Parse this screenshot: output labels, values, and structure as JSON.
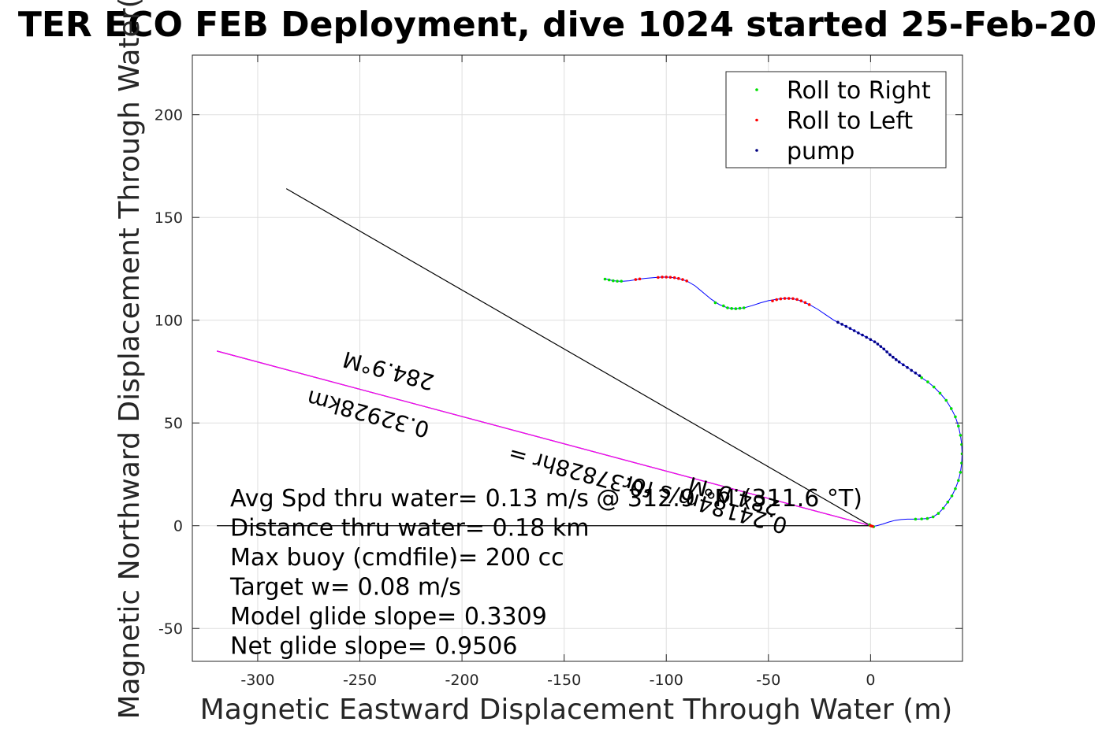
{
  "chart_data": {
    "type": "scatter",
    "title": "TER ECO FEB Deployment, dive 1024 started 25-Feb-20",
    "xlabel": "Magnetic Eastward Displacement Through Water (m)",
    "ylabel": "Magnetic Northward Displacement Through Water(",
    "xlim": [
      -332,
      45
    ],
    "ylim": [
      -66,
      229
    ],
    "xticks": [
      -300,
      -250,
      -200,
      -150,
      -100,
      -50,
      0
    ],
    "yticks": [
      -50,
      0,
      50,
      100,
      150,
      200
    ],
    "grid": true,
    "legend_position": "top-right",
    "series": [
      {
        "name": "Roll to Right",
        "color": "#00e000",
        "points": [
          [
            -130,
            120
          ],
          [
            -128,
            119.6
          ],
          [
            -126,
            119.2
          ],
          [
            -124,
            119
          ],
          [
            -122,
            119
          ],
          [
            -76,
            108.5
          ],
          [
            -72,
            107
          ],
          [
            -70,
            106
          ],
          [
            -68,
            105.7
          ],
          [
            -66,
            105.6
          ],
          [
            -64,
            105.8
          ],
          [
            -62,
            106
          ],
          [
            25,
            72
          ],
          [
            28,
            70
          ],
          [
            31,
            67.5
          ],
          [
            34,
            64.5
          ],
          [
            37,
            61
          ],
          [
            39.5,
            57
          ],
          [
            41.5,
            53
          ],
          [
            43,
            48.5
          ],
          [
            44,
            44
          ],
          [
            44.6,
            39.5
          ],
          [
            44.8,
            35
          ],
          [
            44.6,
            30.5
          ],
          [
            44,
            26
          ],
          [
            43,
            22
          ],
          [
            41.5,
            18
          ],
          [
            39.8,
            14.5
          ],
          [
            37.8,
            11.5
          ],
          [
            35.6,
            8.5
          ],
          [
            33.2,
            6
          ],
          [
            30.6,
            4.3
          ],
          [
            27.8,
            3.5
          ],
          [
            25,
            3.3
          ],
          [
            22,
            3.2
          ],
          [
            -0.5,
            0.5
          ],
          [
            0.5,
            -0.2
          ],
          [
            1.5,
            -0.5
          ]
        ]
      },
      {
        "name": "Roll to Left",
        "color": "#ff0000",
        "points": [
          [
            -115,
            119.8
          ],
          [
            -113,
            120.1
          ],
          [
            -104,
            120.8
          ],
          [
            -102,
            121
          ],
          [
            -100,
            121
          ],
          [
            -98,
            120.9
          ],
          [
            -96,
            120.7
          ],
          [
            -94,
            120.3
          ],
          [
            -92,
            119.8
          ],
          [
            -90,
            119.1
          ],
          [
            -48,
            109.4
          ],
          [
            -46,
            110
          ],
          [
            -44,
            110.4
          ],
          [
            -42,
            110.6
          ],
          [
            -40,
            110.6
          ],
          [
            -38,
            110.5
          ],
          [
            -36,
            110.1
          ],
          [
            -34,
            109.4
          ],
          [
            -32,
            108.6
          ],
          [
            -30,
            107.6
          ],
          [
            0,
            0
          ],
          [
            1,
            -0.3
          ]
        ]
      },
      {
        "name": "pump",
        "color": "#000080",
        "points": [
          [
            -16,
            99
          ],
          [
            -14,
            98
          ],
          [
            -12,
            97
          ],
          [
            -10,
            96
          ],
          [
            -8,
            94.9
          ],
          [
            -6,
            93.8
          ],
          [
            -4,
            92.8
          ],
          [
            -2,
            91.7
          ],
          [
            0,
            90.6
          ],
          [
            2,
            89.5
          ],
          [
            3.5,
            88.4
          ],
          [
            5,
            87.2
          ],
          [
            6.5,
            86
          ],
          [
            8,
            84.6
          ],
          [
            9.5,
            83.2
          ],
          [
            11,
            82
          ],
          [
            12.5,
            80.8
          ],
          [
            14,
            79.7
          ],
          [
            16,
            78.3
          ],
          [
            18,
            77
          ],
          [
            20,
            75.6
          ],
          [
            22,
            74.3
          ],
          [
            24,
            73
          ]
        ]
      }
    ],
    "track": [
      [
        -130,
        120.2
      ],
      [
        -126,
        119.2
      ],
      [
        -122,
        118.9
      ],
      [
        -118,
        119.2
      ],
      [
        -114,
        119.9
      ],
      [
        -110,
        120.4
      ],
      [
        -106,
        120.7
      ],
      [
        -102,
        121
      ],
      [
        -98,
        120.9
      ],
      [
        -94,
        120.3
      ],
      [
        -90,
        119.1
      ],
      [
        -86,
        116.8
      ],
      [
        -82,
        113.5
      ],
      [
        -78,
        110.2
      ],
      [
        -74,
        107.6
      ],
      [
        -70,
        106
      ],
      [
        -66,
        105.6
      ],
      [
        -62,
        106
      ],
      [
        -58,
        107.1
      ],
      [
        -54,
        108.4
      ],
      [
        -50,
        109.5
      ],
      [
        -46,
        110.2
      ],
      [
        -42,
        110.6
      ],
      [
        -38,
        110.5
      ],
      [
        -34,
        109.4
      ],
      [
        -30,
        107.6
      ],
      [
        -26,
        105.4
      ],
      [
        -22,
        102.7
      ],
      [
        -18,
        100
      ],
      [
        -14,
        98
      ],
      [
        -10,
        96
      ],
      [
        -6,
        93.8
      ],
      [
        -2,
        91.7
      ],
      [
        2,
        89.5
      ],
      [
        5,
        87.2
      ],
      [
        8,
        84.6
      ],
      [
        11,
        82
      ],
      [
        14,
        79.7
      ],
      [
        18,
        77
      ],
      [
        22,
        74.3
      ],
      [
        25,
        72
      ],
      [
        28,
        70
      ],
      [
        31,
        67.5
      ],
      [
        34,
        64.5
      ],
      [
        37,
        61
      ],
      [
        39.5,
        57
      ],
      [
        41.5,
        53
      ],
      [
        43,
        48.5
      ],
      [
        44,
        44
      ],
      [
        44.6,
        39.5
      ],
      [
        44.8,
        35
      ],
      [
        44.6,
        30.5
      ],
      [
        44,
        26
      ],
      [
        43,
        22
      ],
      [
        41.5,
        18
      ],
      [
        39.8,
        14.5
      ],
      [
        37.8,
        11.5
      ],
      [
        35.6,
        8.5
      ],
      [
        33.2,
        6
      ],
      [
        30.6,
        4.3
      ],
      [
        27.8,
        3.5
      ],
      [
        25,
        3.3
      ],
      [
        22,
        3.2
      ],
      [
        18,
        3.2
      ],
      [
        15,
        3
      ],
      [
        12,
        2.6
      ],
      [
        9,
        1.8
      ],
      [
        6,
        0.8
      ],
      [
        3,
        0
      ],
      [
        1,
        -0.4
      ],
      [
        0,
        0
      ]
    ],
    "reference_lines": [
      {
        "color": "#000000",
        "from": [
          0,
          0
        ],
        "to": [
          -286,
          164
        ]
      },
      {
        "color": "#000000",
        "from": [
          0,
          0
        ],
        "to": [
          -320,
          85
        ]
      },
      {
        "color": "#ff00ff",
        "from": [
          0,
          0
        ],
        "to": [
          -320,
          85
        ]
      },
      {
        "color": "#000000",
        "from": [
          0,
          0
        ],
        "to": [
          -320,
          0
        ]
      }
    ],
    "heading_labels": [
      {
        "text": "284.9°M",
        "x": -235,
        "y": 79,
        "rotation": 195.2
      },
      {
        "text": "0.32928km",
        "x": -245,
        "y": 58,
        "rotation": 195.2
      },
      {
        "text": "0.37828hr =",
        "x": -143,
        "y": 30,
        "rotation": 195.2
      },
      {
        "text": "0.24184m/s for",
        "x": -80,
        "y": 14,
        "rotation": 195.2
      },
      {
        "text": "284.9°M",
        "x": -66,
        "y": 18,
        "rotation": 195.2
      }
    ],
    "annotations": [
      "Avg Spd thru water=  0.13 m/s @ 312.9 °M (311.6 °T)",
      "Distance thru water=  0.18 km",
      "Max buoy (cmdfile)= 200 cc",
      "Target w= 0.08 m/s",
      "Model glide slope= 0.3309",
      "Net glide slope= 0.9506"
    ]
  }
}
